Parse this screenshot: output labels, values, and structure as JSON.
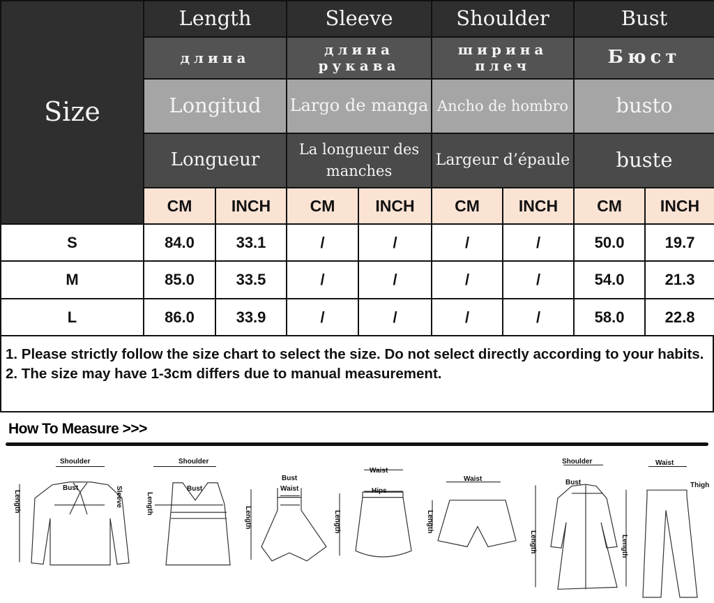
{
  "table": {
    "size_label": "Size",
    "groups": [
      {
        "en": "Length",
        "ru": "длина",
        "es": "Longitud",
        "fr": "Longueur"
      },
      {
        "en": "Sleeve",
        "ru": "длина рукава",
        "es": "Largo de manga",
        "fr": "La longueur des manches"
      },
      {
        "en": "Shoulder",
        "ru": "ширина плеч",
        "es": "Ancho de hombro",
        "fr": "Largeur d’épaule"
      },
      {
        "en": "Bust",
        "ru": "Бюст",
        "es": "busto",
        "fr": "buste"
      }
    ],
    "units": [
      "CM",
      "INCH",
      "CM",
      "INCH",
      "CM",
      "INCH",
      "CM",
      "INCH"
    ],
    "rows": [
      {
        "size": "S",
        "values": [
          "84.0",
          "33.1",
          "/",
          "/",
          "/",
          "/",
          "50.0",
          "19.7"
        ]
      },
      {
        "size": "M",
        "values": [
          "85.0",
          "33.5",
          "/",
          "/",
          "/",
          "/",
          "54.0",
          "21.3"
        ]
      },
      {
        "size": "L",
        "values": [
          "86.0",
          "33.9",
          "/",
          "/",
          "/",
          "/",
          "58.0",
          "22.8"
        ]
      }
    ]
  },
  "notes": [
    "1. Please strictly follow the size chart to select the size. Do not select directly according to your habits.",
    "2. The size may have 1-3cm differs due to manual measurement."
  ],
  "how_to_measure": {
    "title": "How To Measure >>>",
    "labels": {
      "shoulder": "Shoulder",
      "bust": "Bust",
      "sleeve": "Sleeve",
      "length": "Length",
      "waist": "Waist",
      "hips": "Hips",
      "thigh": "Thigh"
    }
  }
}
